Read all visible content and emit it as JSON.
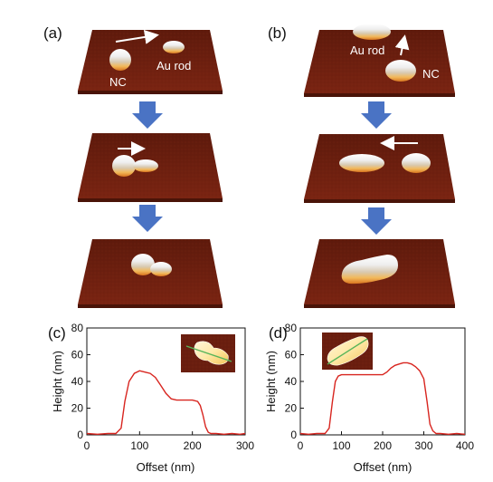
{
  "figure": {
    "panel_labels": {
      "a": "(a)",
      "b": "(b)",
      "c": "(c)",
      "d": "(d)"
    },
    "annotations": {
      "nc": "NC",
      "au_rod": "Au rod"
    },
    "colors": {
      "substrate": "#6f1f10",
      "arrow": "#4a73c4",
      "curve": "#d8251f",
      "inset_line": "#58b55a"
    }
  },
  "chart_data": [
    {
      "type": "line",
      "panel": "(c)",
      "xlabel": "Offset (nm)",
      "ylabel": "Height (nm)",
      "xlim": [
        0,
        300
      ],
      "ylim": [
        0,
        80
      ],
      "xticks": [
        0,
        100,
        200,
        300
      ],
      "yticks": [
        0,
        20,
        40,
        60,
        80
      ],
      "x": [
        0,
        20,
        40,
        55,
        65,
        72,
        80,
        90,
        100,
        110,
        120,
        130,
        140,
        150,
        160,
        170,
        180,
        190,
        200,
        210,
        215,
        220,
        225,
        230,
        235,
        245,
        260,
        275,
        290,
        300
      ],
      "y": [
        1,
        0.5,
        1,
        1,
        5,
        25,
        40,
        46,
        48,
        47,
        46,
        43,
        37,
        31,
        27,
        26,
        26,
        26,
        26,
        25,
        22,
        15,
        6,
        2,
        1,
        1,
        0.5,
        1,
        0.5,
        1
      ]
    },
    {
      "type": "line",
      "panel": "(d)",
      "xlabel": "Offset (nm)",
      "ylabel": "Height (nm)",
      "xlim": [
        0,
        400
      ],
      "ylim": [
        0,
        80
      ],
      "xticks": [
        0,
        100,
        200,
        300,
        400
      ],
      "yticks": [
        0,
        20,
        40,
        60,
        80
      ],
      "x": [
        0,
        20,
        40,
        60,
        70,
        78,
        85,
        92,
        100,
        120,
        150,
        180,
        200,
        210,
        220,
        230,
        240,
        250,
        260,
        270,
        280,
        290,
        300,
        308,
        315,
        322,
        330,
        340,
        360,
        380,
        400
      ],
      "y": [
        1,
        0.5,
        1,
        1,
        5,
        25,
        40,
        44,
        45,
        45,
        45,
        45,
        45,
        47,
        50,
        52,
        53,
        54,
        54,
        53,
        51,
        48,
        42,
        25,
        8,
        3,
        1,
        1,
        0.5,
        1,
        0.5
      ]
    }
  ]
}
